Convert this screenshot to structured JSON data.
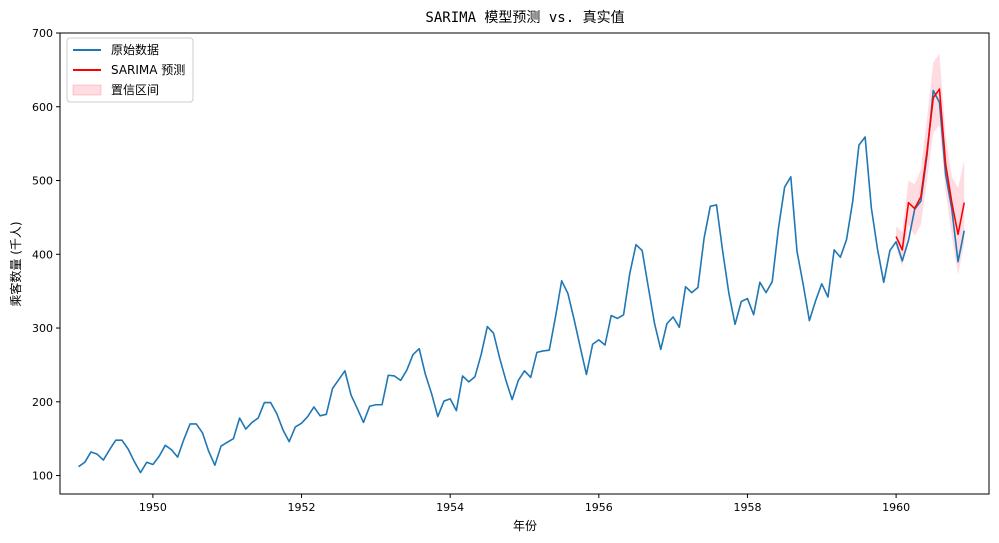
{
  "chart_data": {
    "type": "line",
    "title": "SARIMA 模型预测 vs. 真实值",
    "xlabel": "年份",
    "ylabel": "乘客数量 (千人)",
    "xlim": [
      1948.75,
      1961.25
    ],
    "ylim": [
      75,
      700
    ],
    "xticks": [
      1950,
      1952,
      1954,
      1956,
      1958,
      1960
    ],
    "yticks": [
      100,
      200,
      300,
      400,
      500,
      600,
      700
    ],
    "grid": false,
    "legend_position": "upper-left",
    "series": [
      {
        "name": "原始数据",
        "color": "#1f77b4",
        "start_year": 1949,
        "step": "monthly",
        "values": [
          112,
          118,
          132,
          129,
          121,
          135,
          148,
          148,
          136,
          119,
          104,
          118,
          115,
          126,
          141,
          135,
          125,
          149,
          170,
          170,
          158,
          133,
          114,
          140,
          145,
          150,
          178,
          163,
          172,
          178,
          199,
          199,
          184,
          162,
          146,
          166,
          171,
          180,
          193,
          181,
          183,
          218,
          230,
          242,
          209,
          191,
          172,
          194,
          196,
          196,
          236,
          235,
          229,
          243,
          264,
          272,
          237,
          211,
          180,
          201,
          204,
          188,
          235,
          227,
          234,
          264,
          302,
          293,
          259,
          229,
          203,
          229,
          242,
          233,
          267,
          269,
          270,
          315,
          364,
          347,
          312,
          274,
          237,
          278,
          284,
          277,
          317,
          313,
          318,
          374,
          413,
          405,
          355,
          306,
          271,
          306,
          315,
          301,
          356,
          348,
          355,
          422,
          465,
          467,
          404,
          347,
          305,
          336,
          340,
          318,
          362,
          348,
          363,
          435,
          491,
          505,
          404,
          359,
          310,
          337,
          360,
          342,
          406,
          396,
          420,
          472,
          548,
          559,
          463,
          407,
          362,
          405,
          417,
          391,
          419,
          461,
          472,
          535,
          622,
          606,
          508,
          461,
          390,
          432
        ]
      },
      {
        "name": "SARIMA 预测",
        "color": "#ff0000",
        "start_year": 1960,
        "step": "monthly",
        "values": [
          424,
          406,
          470,
          462,
          478,
          540,
          612,
          624,
          522,
          470,
          427,
          470
        ],
        "ci_lower": [
          410,
          383,
          440,
          425,
          440,
          500,
          565,
          575,
          485,
          425,
          372,
          415
        ],
        "ci_upper": [
          438,
          430,
          500,
          495,
          515,
          585,
          660,
          672,
          560,
          505,
          490,
          528
        ]
      },
      {
        "name": "置信区间",
        "color": "#ffc0c8",
        "kind": "band"
      }
    ]
  }
}
